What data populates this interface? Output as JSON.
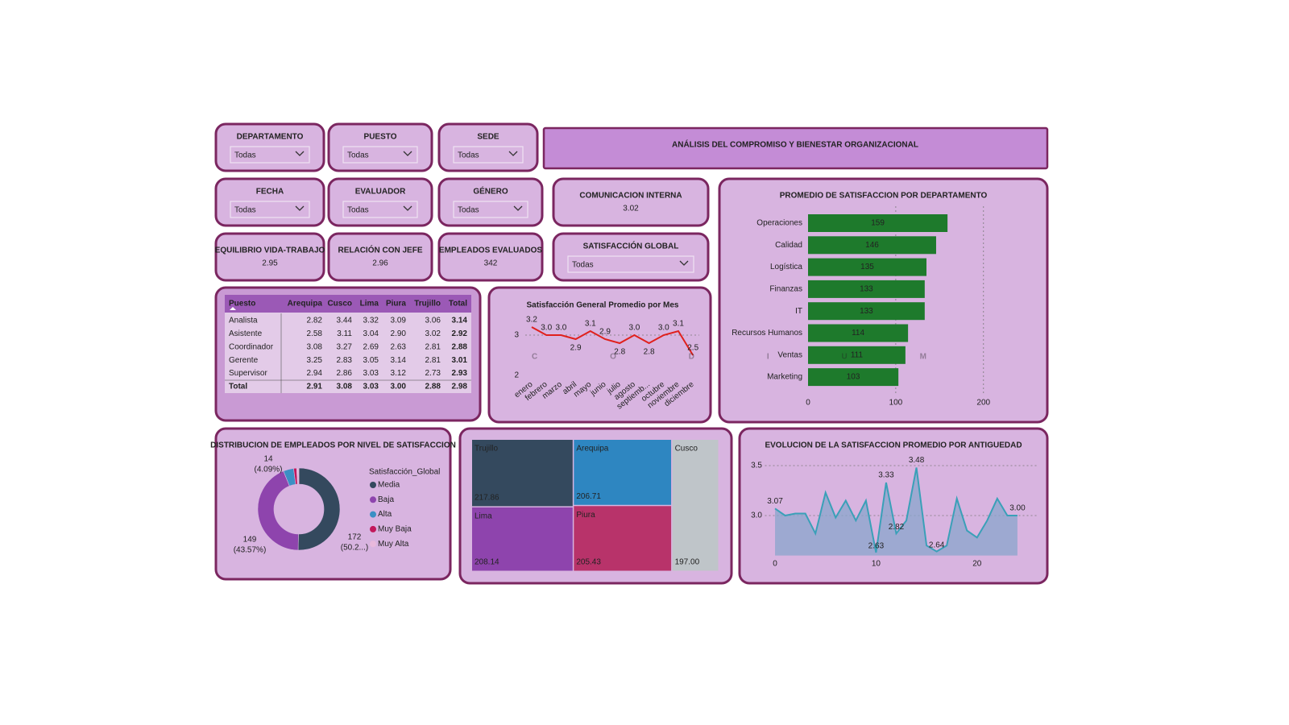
{
  "header": {
    "title": "ANÁLISIS DEL COMPROMISO Y BIENESTAR ORGANIZACIONAL"
  },
  "watermark": "CODIUM",
  "filters": [
    {
      "label": "DEPARTAMENTO",
      "value": "Todas"
    },
    {
      "label": "PUESTO",
      "value": "Todas"
    },
    {
      "label": "SEDE",
      "value": "Todas"
    },
    {
      "label": "FECHA",
      "value": "Todas"
    },
    {
      "label": "EVALUADOR",
      "value": "Todas"
    },
    {
      "label": "GÉNERO",
      "value": "Todas"
    },
    {
      "label": "SATISFACCIÓN GLOBAL",
      "value": "Todas"
    }
  ],
  "kpis": [
    {
      "label": "COMUNICACION INTERNA",
      "value": 3.02
    },
    {
      "label": "EQUILIBRIO VIDA-TRABAJO",
      "value": 2.95
    },
    {
      "label": "RELACIÓN CON JEFE",
      "value": 2.96
    },
    {
      "label": "EMPLEADOS EVALUADOS",
      "value": 342
    }
  ],
  "table": {
    "headers": [
      "Puesto",
      "Arequipa",
      "Cusco",
      "Lima",
      "Piura",
      "Trujillo",
      "Total"
    ],
    "rows": [
      [
        "Analista",
        "2.82",
        "3.44",
        "3.32",
        "3.09",
        "3.06",
        "3.14"
      ],
      [
        "Asistente",
        "2.58",
        "3.11",
        "3.04",
        "2.90",
        "3.02",
        "2.92"
      ],
      [
        "Coordinador",
        "3.08",
        "3.27",
        "2.69",
        "2.63",
        "2.81",
        "2.88"
      ],
      [
        "Gerente",
        "3.25",
        "2.83",
        "3.05",
        "3.14",
        "2.81",
        "3.01"
      ],
      [
        "Supervisor",
        "2.94",
        "2.86",
        "3.03",
        "3.12",
        "2.73",
        "2.93"
      ],
      [
        "Total",
        "2.91",
        "3.08",
        "3.03",
        "3.00",
        "2.88",
        "2.98"
      ]
    ]
  },
  "chart_data": [
    {
      "type": "bar",
      "orientation": "horizontal",
      "title": "PROMEDIO DE SATISFACCION POR DEPARTAMENTO",
      "categories": [
        "Operaciones",
        "Calidad",
        "Logística",
        "Finanzas",
        "IT",
        "Recursos Humanos",
        "Ventas",
        "Marketing"
      ],
      "values": [
        159,
        146,
        135,
        133,
        133,
        114,
        111,
        103
      ],
      "color": "#1e7a2c",
      "xlim": [
        0,
        225
      ],
      "xticks": [
        0,
        100,
        200
      ],
      "grid": true
    },
    {
      "type": "line",
      "title": "Satisfacción General Promedio por Mes",
      "categories": [
        "enero",
        "febrero",
        "marzo",
        "abril",
        "mayo",
        "junio",
        "julio",
        "agosto",
        "septiemb...",
        "octubre",
        "noviembre",
        "diciembre"
      ],
      "values": [
        3.2,
        3.0,
        3.0,
        2.9,
        3.1,
        2.9,
        2.8,
        3.0,
        2.8,
        3.0,
        3.1,
        2.5
      ],
      "value_labels": [
        "3.2",
        "3.0",
        "3.0",
        "2.9",
        "3.1",
        "2.9",
        "2.8",
        "3.0",
        "2.8",
        "3.0",
        "3.1",
        "2.5"
      ],
      "color": "#e0201c",
      "ylim": [
        2,
        3.4
      ],
      "yticks": [
        2,
        3
      ],
      "grid": true
    },
    {
      "type": "donut",
      "title": "DISTRIBUCION DE EMPLEADOS POR NIVEL DE SATISFACCION",
      "legend_title": "Satisfacción_Global",
      "categories": [
        "Media",
        "Baja",
        "Alta",
        "Muy Baja",
        "Muy Alta"
      ],
      "values": [
        172,
        149,
        14,
        4,
        3
      ],
      "percent_labels": [
        "(50.2...)",
        "(43.57%)",
        "(4.09%)",
        null,
        null
      ],
      "colors": [
        "#34495e",
        "#8e44ad",
        "#3b8fc4",
        "#c2185b",
        "#e8b9dc"
      ]
    },
    {
      "type": "treemap",
      "categories": [
        "Trujillo",
        "Lima",
        "Arequipa",
        "Piura",
        "Cusco"
      ],
      "values": [
        217.86,
        208.14,
        206.71,
        205.43,
        197
      ],
      "value_labels": [
        "217.86",
        "208.14",
        "206.71",
        "205.43",
        "197.00"
      ],
      "colors": [
        "#34495e",
        "#8e44ad",
        "#2e86c1",
        "#b8336a",
        "#bfc5c9"
      ]
    },
    {
      "type": "area",
      "title": "EVOLUCION DE LA SATISFACCION PROMEDIO POR ANTIGUEDAD",
      "x": [
        0,
        1,
        2,
        3,
        4,
        5,
        6,
        7,
        8,
        9,
        10,
        11,
        12,
        13,
        14,
        15,
        16,
        17,
        18,
        19,
        20,
        21,
        22,
        23,
        24
      ],
      "values": [
        3.07,
        3.0,
        3.02,
        3.02,
        2.82,
        3.23,
        2.98,
        3.15,
        2.95,
        3.15,
        2.63,
        3.33,
        2.82,
        2.95,
        3.48,
        2.7,
        2.64,
        2.7,
        3.17,
        2.85,
        2.78,
        2.95,
        3.17,
        3.0,
        3.0
      ],
      "value_labels": [
        "3.07",
        null,
        null,
        null,
        null,
        null,
        null,
        null,
        null,
        null,
        "2.63",
        "3.33",
        "2.82",
        null,
        "3.48",
        null,
        "2.64",
        null,
        null,
        null,
        null,
        null,
        null,
        null,
        "3.00"
      ],
      "color": "#3aa0b8",
      "xlim": [
        -1,
        26
      ],
      "xticks": [
        0,
        10,
        20
      ],
      "ylim": [
        2.6,
        3.6
      ],
      "yticks": [
        {
          "value": 3,
          "label": "3.0"
        },
        {
          "value": 3.5,
          "label": "3.5"
        }
      ],
      "grid": true
    }
  ]
}
